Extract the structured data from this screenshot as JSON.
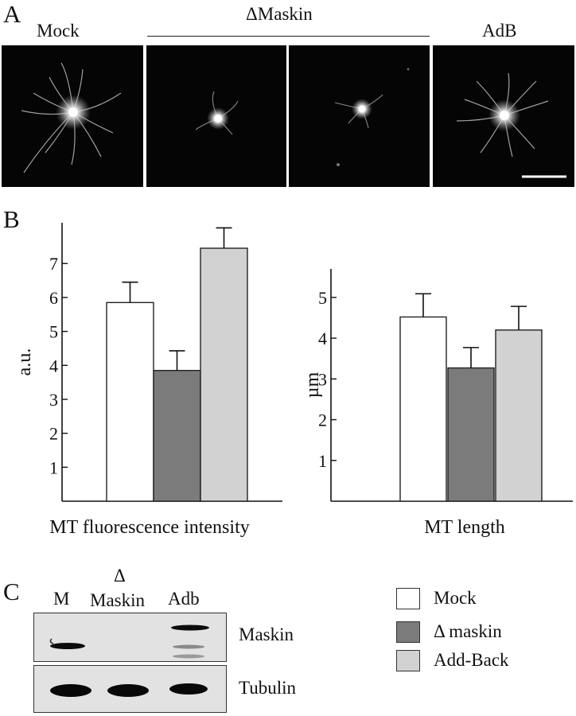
{
  "panel_a": {
    "letter": "A",
    "labels": {
      "mock": "Mock",
      "dmaskin": "ΔMaskin",
      "adb": "AdB"
    }
  },
  "panel_b": {
    "letter": "B"
  },
  "panel_c": {
    "letter": "C",
    "lanes": {
      "m": "M",
      "delta": "Δ",
      "maskin_word": "Maskin",
      "adb": "Adb"
    },
    "rows": {
      "maskin": "Maskin",
      "tubulin": "Tubulin"
    }
  },
  "legend": {
    "items": [
      {
        "label": "Mock",
        "color": "#ffffff"
      },
      {
        "label": "Δ maskin",
        "color": "#7b7b7b"
      },
      {
        "label": "Add-Back",
        "color": "#d2d2d2"
      }
    ]
  },
  "chart_data": [
    {
      "type": "bar",
      "title": "",
      "xlabel": "MT fluorescence intensity",
      "ylabel": "a.u.",
      "categories": [
        "Mock",
        "Δ maskin",
        "Add-Back"
      ],
      "values": [
        5.85,
        3.85,
        7.45
      ],
      "errors": [
        0.6,
        0.58,
        0.6
      ],
      "colors": [
        "#ffffff",
        "#7b7b7b",
        "#d2d2d2"
      ],
      "yticks": [
        1,
        2,
        3,
        4,
        5,
        6,
        7
      ],
      "ylim": [
        0,
        8.2
      ],
      "grid": false
    },
    {
      "type": "bar",
      "title": "",
      "xlabel": "MT length",
      "ylabel": "µm",
      "categories": [
        "Mock",
        "Δ maskin",
        "Add-Back"
      ],
      "values": [
        4.52,
        3.27,
        4.2
      ],
      "errors": [
        0.57,
        0.5,
        0.58
      ],
      "colors": [
        "#ffffff",
        "#7b7b7b",
        "#d2d2d2"
      ],
      "yticks": [
        1,
        2,
        3,
        4,
        5
      ],
      "ylim": [
        0,
        5.7
      ],
      "grid": false
    }
  ]
}
